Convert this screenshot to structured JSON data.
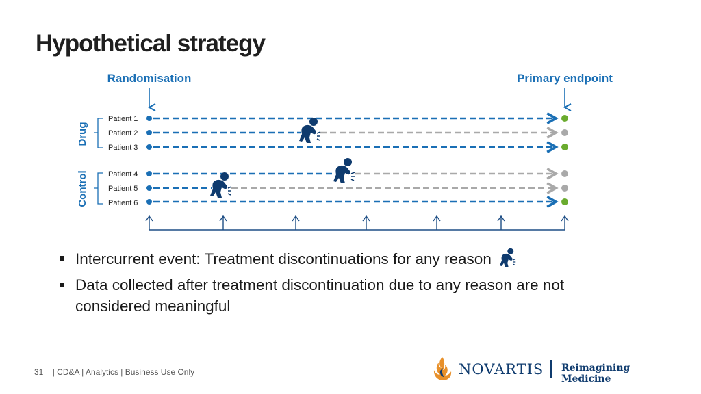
{
  "title": "Hypothetical strategy",
  "diagram": {
    "randomisation_label": "Randomisation",
    "endpoint_label": "Primary endpoint",
    "groups": [
      {
        "name": "Drug",
        "patients": [
          {
            "label": "Patient 1",
            "discontinued": false
          },
          {
            "label": "Patient 2",
            "discontinued": true
          },
          {
            "label": "Patient 3",
            "discontinued": false
          }
        ]
      },
      {
        "name": "Control",
        "patients": [
          {
            "label": "Patient 4",
            "discontinued": true
          },
          {
            "label": "Patient 5",
            "discontinued": true
          },
          {
            "label": "Patient 6",
            "discontinued": false
          }
        ]
      }
    ],
    "colors": {
      "on_treatment": "#1a6fb5",
      "after_discontinuation": "#a9a9a9",
      "endpoint_observed": "#6aab2e",
      "endpoint_not_meaningful": "#a9a9a9",
      "label_blue": "#1a6fb5",
      "icon": "#0f3b6e",
      "timeline": "#1f4f86"
    },
    "visit_count": 7,
    "event_icon": "patient-discontinuation-icon"
  },
  "bullets": [
    {
      "text": "Intercurrent event: Treatment discontinuations for any reason",
      "icon": "patient-discontinuation-icon"
    },
    {
      "text": "Data collected after treatment discontinuation due to any reason are not considered meaningful"
    }
  ],
  "footer": {
    "page_number": "31",
    "text": "| CD&A | Analytics | Business Use Only"
  },
  "brand": {
    "name": "NOVARTIS",
    "tagline": "Reimagining Medicine"
  }
}
